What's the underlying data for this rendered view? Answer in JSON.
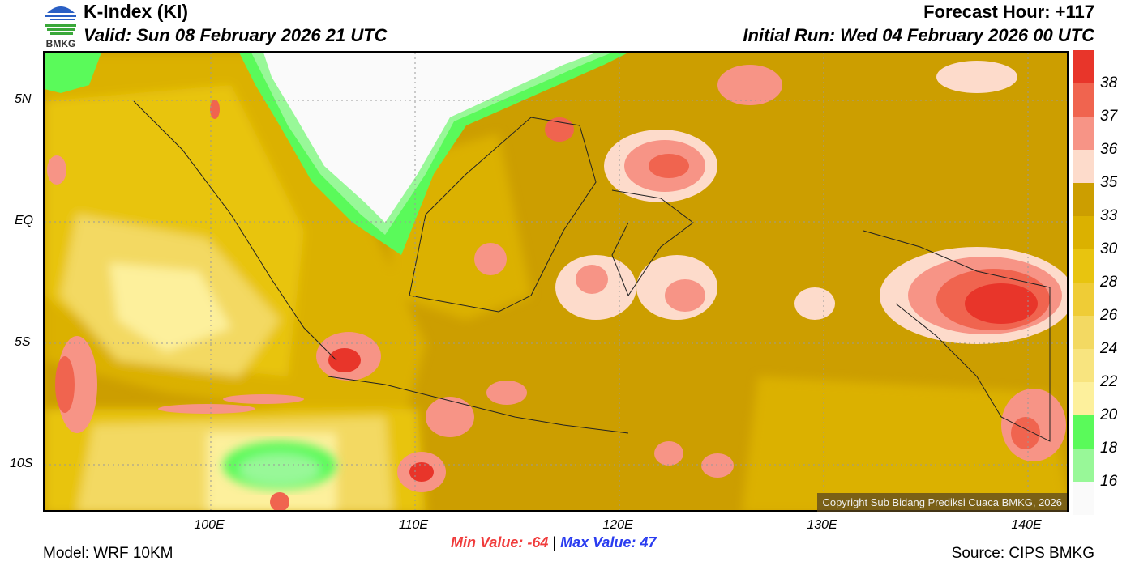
{
  "header": {
    "logo_text": "BMKG",
    "title": "K-Index (KI)",
    "valid": "Valid: Sun 08 February 2026 21 UTC",
    "forecast_hour": "Forecast Hour: +117",
    "initial_run": "Initial Run: Wed 04 February 2026 00 UTC"
  },
  "axes": {
    "lat_labels": [
      "5N",
      "EQ",
      "5S",
      "10S"
    ],
    "lon_labels": [
      "100E",
      "110E",
      "120E",
      "130E",
      "140E"
    ]
  },
  "colorbar": {
    "colors": [
      "#e8352a",
      "#f0644f",
      "#f79486",
      "#fddbcb",
      "#cc9e00",
      "#dbb100",
      "#e8c40f",
      "#efcc36",
      "#f3d962",
      "#f8e47f",
      "#fdf09c",
      "#5afa5a",
      "#98f898",
      "#fafafa"
    ],
    "labels": [
      "38",
      "37",
      "36",
      "35",
      "33",
      "30",
      "28",
      "26",
      "24",
      "22",
      "20",
      "18",
      "16"
    ]
  },
  "footer": {
    "min_label": "Min Value: -64",
    "separator": "|",
    "max_label": "Max Value:  47",
    "model": "Model: WRF 10KM",
    "source": "Source: CIPS BMKG",
    "copyright": "Copyright Sub Bidang Prediksi Cuaca BMKG, 2026"
  }
}
